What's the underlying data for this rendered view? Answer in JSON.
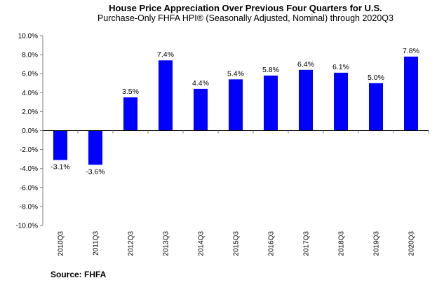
{
  "chart_data": {
    "type": "bar",
    "title": "House Price Appreciation Over Previous Four Quarters for U.S.",
    "subtitle": "Purchase-Only FHFA HPI® (Seasonally Adjusted, Nominal) through 2020Q3",
    "xlabel": "",
    "ylabel": "",
    "categories": [
      "2010Q3",
      "2011Q3",
      "2012Q3",
      "2013Q3",
      "2014Q3",
      "2015Q3",
      "2016Q3",
      "2017Q3",
      "2018Q3",
      "2019Q3",
      "2020Q3"
    ],
    "values": [
      -3.1,
      -3.6,
      3.5,
      7.4,
      4.4,
      5.4,
      5.8,
      6.4,
      6.1,
      5.0,
      7.8
    ],
    "data_labels": [
      "-3.1%",
      "-3.6%",
      "3.5%",
      "7.4%",
      "4.4%",
      "5.4%",
      "5.8%",
      "6.4%",
      "6.1%",
      "5.0%",
      "7.8%"
    ],
    "ylim": [
      -10,
      10
    ],
    "yticks": [
      10,
      8,
      6,
      4,
      2,
      0,
      -2,
      -4,
      -6,
      -8,
      -10
    ],
    "ytick_labels": [
      "10.0%",
      "8.0%",
      "6.0%",
      "4.0%",
      "2.0%",
      "0.0%",
      "-2.0%",
      "-4.0%",
      "-6.0%",
      "-8.0%",
      "-10.0%"
    ],
    "bar_color": "#0000FF",
    "grid": false,
    "legend": "none"
  },
  "source": "Source:  FHFA"
}
